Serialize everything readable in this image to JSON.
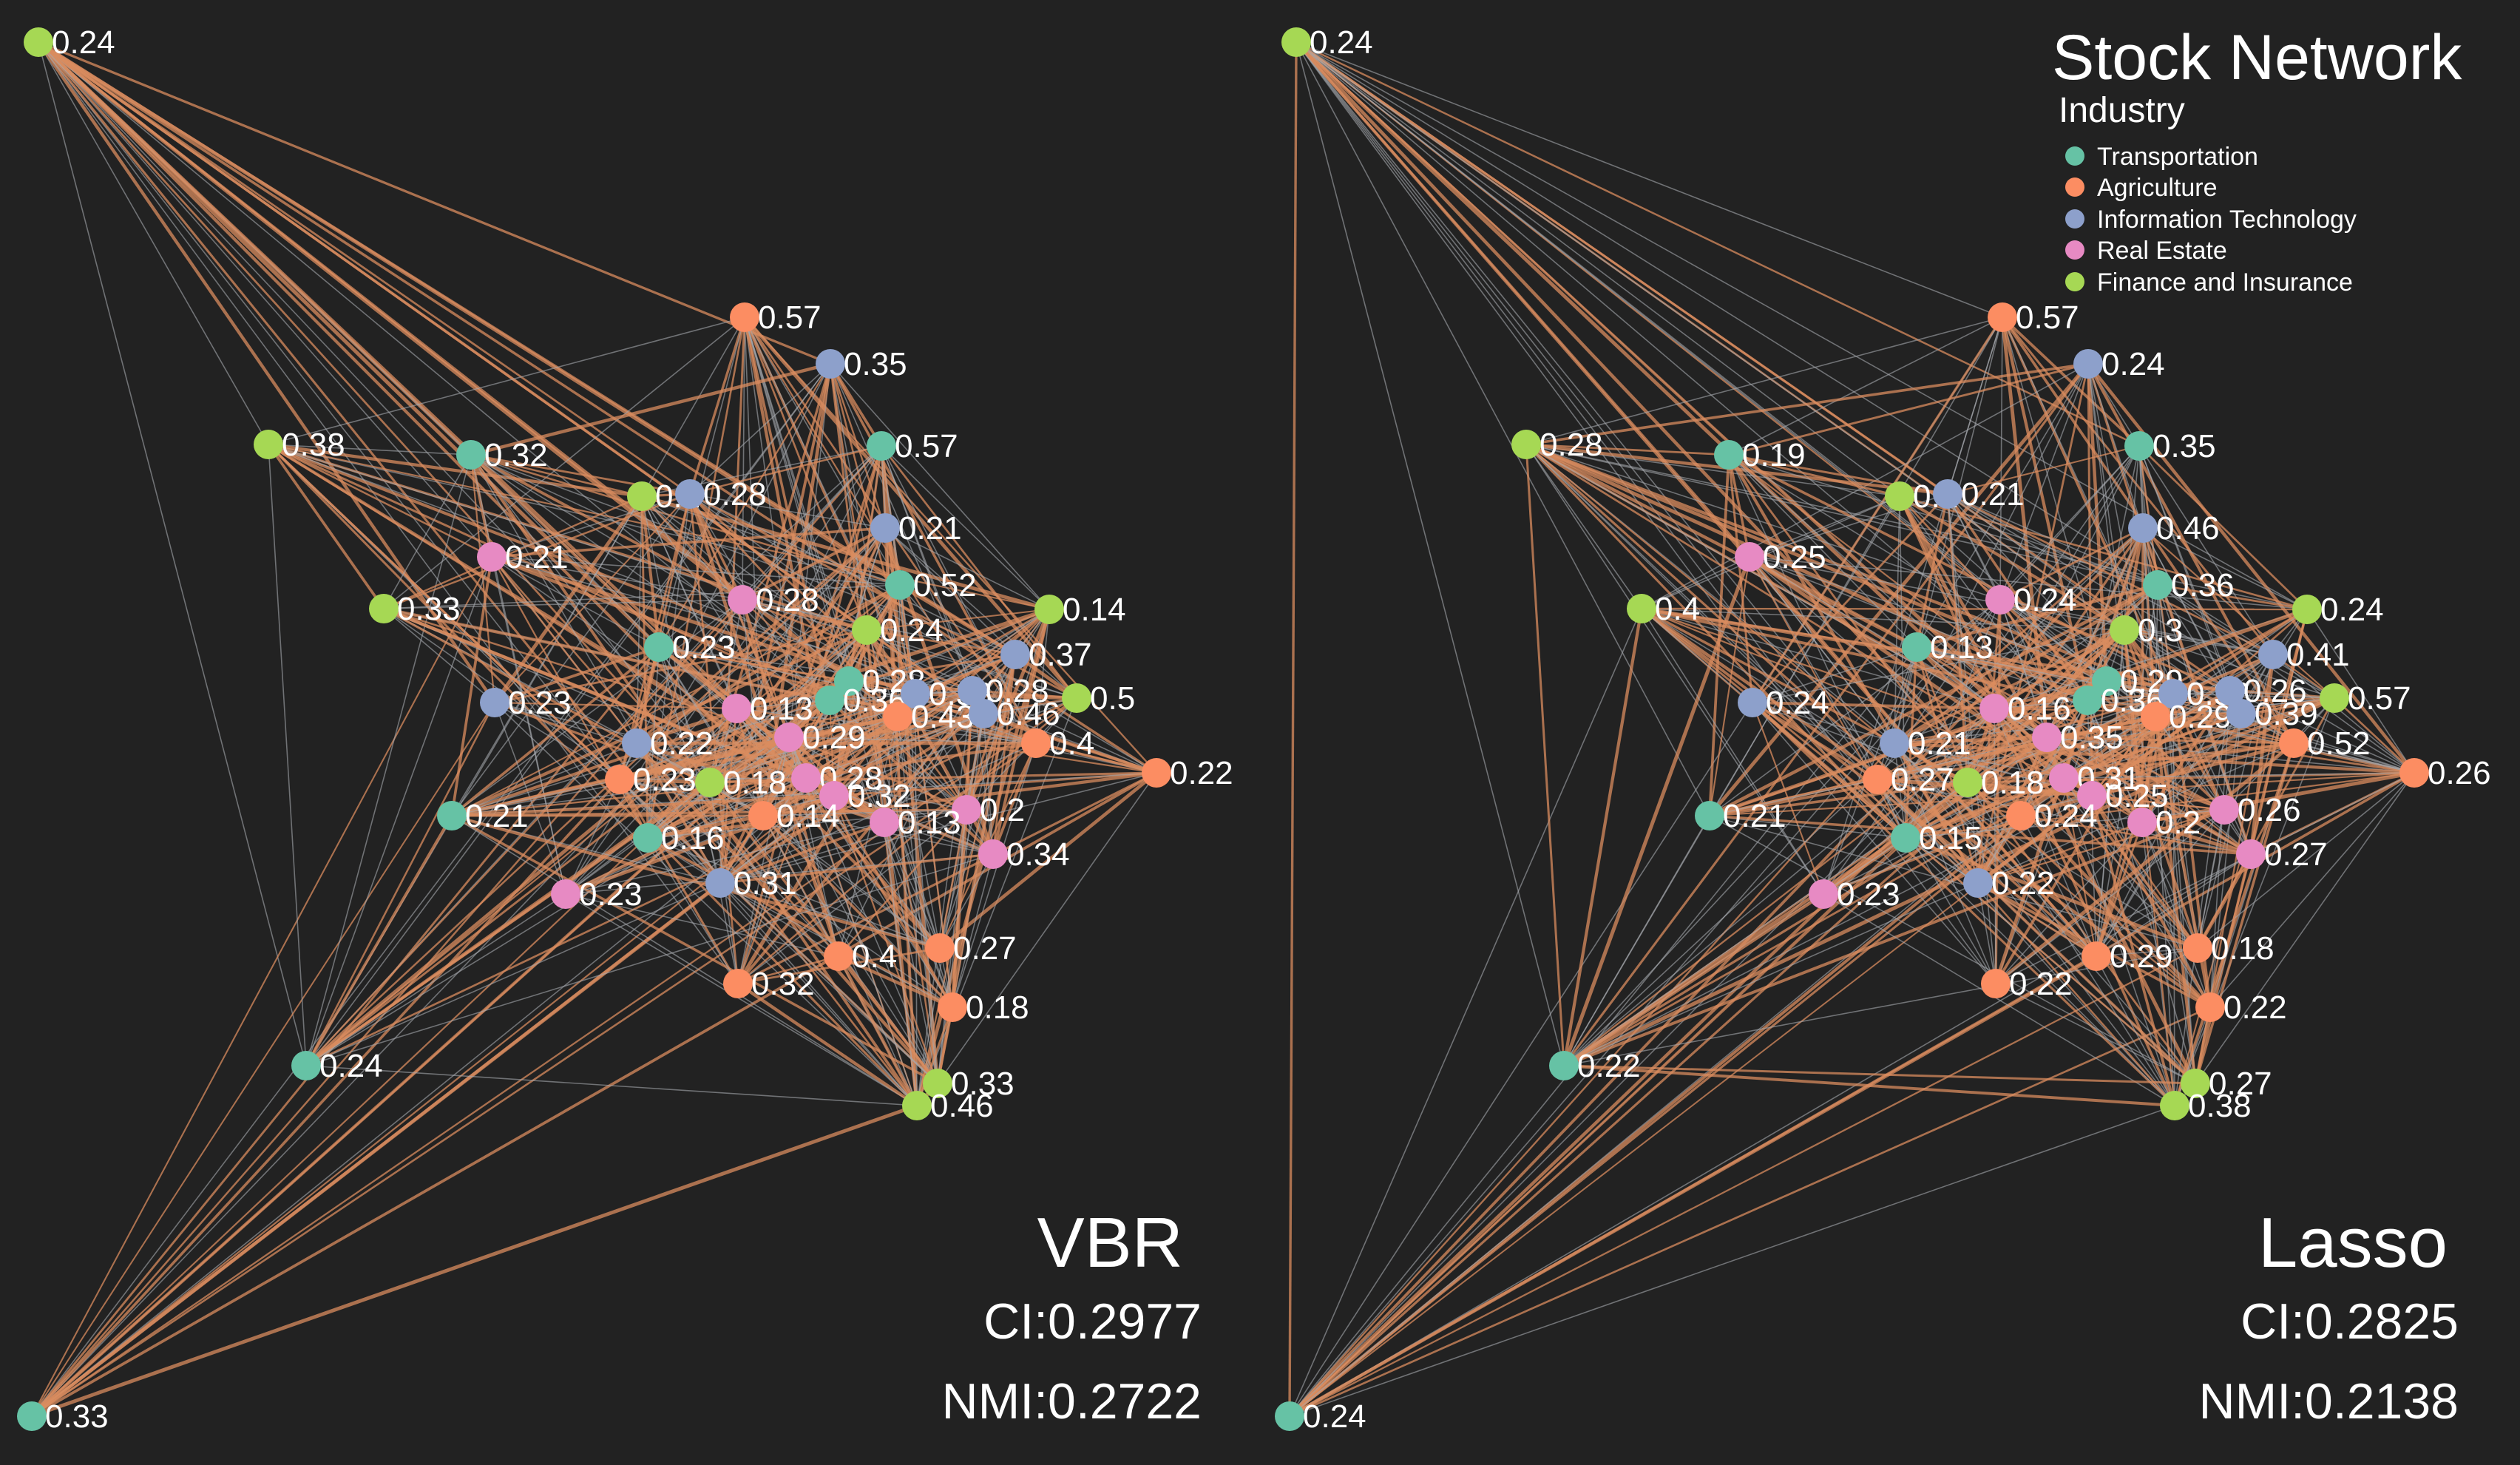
{
  "title": "Stock Network",
  "legend": {
    "title": "Industry",
    "items": [
      {
        "label": "Transportation",
        "color": "#66c2a5"
      },
      {
        "label": "Agriculture",
        "color": "#fc8d62"
      },
      {
        "label": "Information Technology",
        "color": "#8da0cb"
      },
      {
        "label": "Real Estate",
        "color": "#e78ac3"
      },
      {
        "label": "Finance and Insurance",
        "color": "#a6d854"
      }
    ]
  },
  "edge_colors": {
    "strong": "#d98c5f",
    "weak": "#a5a9ad"
  },
  "panels": [
    {
      "method": "VBR",
      "ci": "CI:0.2977",
      "nmi": "NMI:0.2722",
      "nodes": [
        {
          "industry": 4,
          "label": "0.24"
        },
        {
          "industry": 0,
          "label": "0.33"
        },
        {
          "industry": 1,
          "label": "0.57"
        },
        {
          "industry": 2,
          "label": "0.35"
        },
        {
          "industry": 0,
          "label": "0.57"
        },
        {
          "industry": 4,
          "label": "0.38"
        },
        {
          "industry": 0,
          "label": "0.32"
        },
        {
          "industry": 4,
          "label": "0.2"
        },
        {
          "industry": 2,
          "label": "0.28"
        },
        {
          "industry": 2,
          "label": "0.21"
        },
        {
          "industry": 3,
          "label": "0.21"
        },
        {
          "industry": 0,
          "label": "0.52"
        },
        {
          "industry": 4,
          "label": "0.33"
        },
        {
          "industry": 3,
          "label": "0.28"
        },
        {
          "industry": 4,
          "label": "0.24"
        },
        {
          "industry": 4,
          "label": "0.14"
        },
        {
          "industry": 0,
          "label": "0.23"
        },
        {
          "industry": 2,
          "label": "0.37"
        },
        {
          "industry": 2,
          "label": "0.23"
        },
        {
          "industry": 0,
          "label": "0.28"
        },
        {
          "industry": 4,
          "label": "0.5"
        },
        {
          "industry": 3,
          "label": "0.13"
        },
        {
          "industry": 0,
          "label": "0.36"
        },
        {
          "industry": 2,
          "label": "0.38"
        },
        {
          "industry": 2,
          "label": "0.28"
        },
        {
          "industry": 1,
          "label": "0.43"
        },
        {
          "industry": 2,
          "label": "0.46"
        },
        {
          "industry": 3,
          "label": "0.29"
        },
        {
          "industry": 2,
          "label": "0.22"
        },
        {
          "industry": 1,
          "label": "0.4"
        },
        {
          "industry": 1,
          "label": "0.22"
        },
        {
          "industry": 1,
          "label": "0.23"
        },
        {
          "industry": 4,
          "label": "0.18"
        },
        {
          "industry": 3,
          "label": "0.28"
        },
        {
          "industry": 3,
          "label": "0.32"
        },
        {
          "industry": 0,
          "label": "0.21"
        },
        {
          "industry": 1,
          "label": "0.14"
        },
        {
          "industry": 3,
          "label": "0.2"
        },
        {
          "industry": 3,
          "label": "0.13"
        },
        {
          "industry": 0,
          "label": "0.16"
        },
        {
          "industry": 3,
          "label": "0.34"
        },
        {
          "industry": 3,
          "label": "0.23"
        },
        {
          "industry": 2,
          "label": "0.31"
        },
        {
          "industry": 1,
          "label": "0.27"
        },
        {
          "industry": 1,
          "label": "0.4"
        },
        {
          "industry": 1,
          "label": "0.32"
        },
        {
          "industry": 1,
          "label": "0.18"
        },
        {
          "industry": 0,
          "label": "0.24"
        },
        {
          "industry": 4,
          "label": "0.33"
        },
        {
          "industry": 4,
          "label": "0.46"
        }
      ]
    },
    {
      "method": "Lasso",
      "ci": "CI:0.2825",
      "nmi": "NMI:0.2138",
      "nodes": [
        {
          "industry": 4,
          "label": "0.24"
        },
        {
          "industry": 0,
          "label": "0.24"
        },
        {
          "industry": 1,
          "label": "0.57"
        },
        {
          "industry": 2,
          "label": "0.24"
        },
        {
          "industry": 0,
          "label": "0.35"
        },
        {
          "industry": 4,
          "label": "0.28"
        },
        {
          "industry": 0,
          "label": "0.19"
        },
        {
          "industry": 4,
          "label": "0.2"
        },
        {
          "industry": 2,
          "label": "0.21"
        },
        {
          "industry": 2,
          "label": "0.46"
        },
        {
          "industry": 3,
          "label": "0.25"
        },
        {
          "industry": 0,
          "label": "0.36"
        },
        {
          "industry": 4,
          "label": "0.4"
        },
        {
          "industry": 3,
          "label": "0.24"
        },
        {
          "industry": 4,
          "label": "0.3"
        },
        {
          "industry": 4,
          "label": "0.24"
        },
        {
          "industry": 0,
          "label": "0.13"
        },
        {
          "industry": 2,
          "label": "0.41"
        },
        {
          "industry": 2,
          "label": "0.24"
        },
        {
          "industry": 0,
          "label": "0.29"
        },
        {
          "industry": 4,
          "label": "0.57"
        },
        {
          "industry": 3,
          "label": "0.16"
        },
        {
          "industry": 0,
          "label": "0.36"
        },
        {
          "industry": 2,
          "label": "0.32"
        },
        {
          "industry": 2,
          "label": "0.26"
        },
        {
          "industry": 1,
          "label": "0.29"
        },
        {
          "industry": 2,
          "label": "0.39"
        },
        {
          "industry": 3,
          "label": "0.35"
        },
        {
          "industry": 2,
          "label": "0.21"
        },
        {
          "industry": 1,
          "label": "0.52"
        },
        {
          "industry": 1,
          "label": "0.26"
        },
        {
          "industry": 1,
          "label": "0.27"
        },
        {
          "industry": 4,
          "label": "0.18"
        },
        {
          "industry": 3,
          "label": "0.31"
        },
        {
          "industry": 3,
          "label": "0.25"
        },
        {
          "industry": 0,
          "label": "0.21"
        },
        {
          "industry": 1,
          "label": "0.24"
        },
        {
          "industry": 3,
          "label": "0.26"
        },
        {
          "industry": 3,
          "label": "0.2"
        },
        {
          "industry": 0,
          "label": "0.15"
        },
        {
          "industry": 3,
          "label": "0.27"
        },
        {
          "industry": 3,
          "label": "0.23"
        },
        {
          "industry": 2,
          "label": "0.22"
        },
        {
          "industry": 1,
          "label": "0.18"
        },
        {
          "industry": 1,
          "label": "0.29"
        },
        {
          "industry": 1,
          "label": "0.22"
        },
        {
          "industry": 1,
          "label": "0.22"
        },
        {
          "industry": 0,
          "label": "0.22"
        },
        {
          "industry": 4,
          "label": "0.27"
        },
        {
          "industry": 4,
          "label": "0.38"
        }
      ]
    }
  ]
}
